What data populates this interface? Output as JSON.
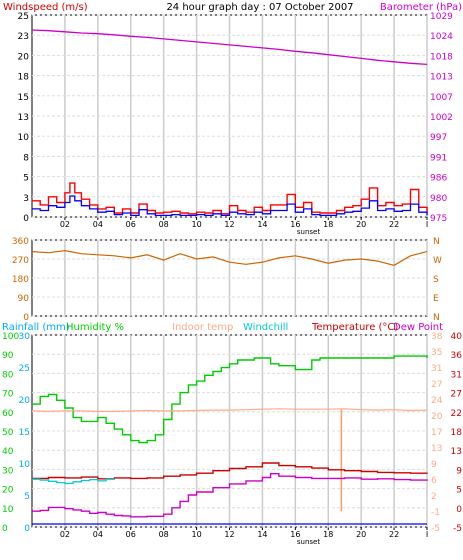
{
  "chart_data": [
    {
      "type": "line",
      "title": "24 hour graph day : 07 October 2007",
      "ylabel": "Windspeed (m/s)",
      "ylabel_right": "Barometer (hPa)",
      "x_ticks": [
        "02",
        "04",
        "06",
        "08",
        "10",
        "12",
        "14",
        "16",
        "18",
        "20",
        "22",
        "I"
      ],
      "x_annotation": "sunset",
      "y_ticks": [
        "0",
        "3",
        "5",
        "8",
        "10",
        "13",
        "15",
        "18",
        "20",
        "23",
        "25"
      ],
      "y_ticks_right": [
        "975",
        "980",
        "986",
        "991",
        "997",
        "1002",
        "1007",
        "1013",
        "1018",
        "1024",
        "1029"
      ],
      "ylim": [
        0,
        25
      ],
      "ylim_right": [
        975,
        1029
      ],
      "grid": true,
      "colors": {
        "gust": "#ff0000",
        "wind": "#0000ff",
        "barometer": "#cc00cc",
        "title_left": "#cc0000",
        "title_right": "#cc00cc",
        "ticks_right": "#cc00cc"
      },
      "series": [
        {
          "key": "barometer",
          "axis": "right",
          "x": [
            0,
            1,
            2,
            3,
            4,
            5,
            6,
            7,
            8,
            9,
            10,
            11,
            12,
            13,
            14,
            15,
            16,
            17,
            18,
            19,
            20,
            21,
            22,
            23,
            24
          ],
          "values": [
            1025,
            1024.8,
            1024.5,
            1024.2,
            1024,
            1023.7,
            1023.3,
            1023,
            1022.6,
            1022.2,
            1021.8,
            1021.4,
            1021,
            1020.6,
            1020.2,
            1019.8,
            1019.3,
            1018.9,
            1018.4,
            1017.9,
            1017.4,
            1016.9,
            1016.5,
            1016.1,
            1015.8
          ]
        },
        {
          "key": "gust",
          "axis": "left",
          "x": [
            0,
            0.5,
            1,
            1.5,
            2,
            2.3,
            2.6,
            3,
            3.5,
            4,
            4.5,
            5,
            5.5,
            6,
            6.5,
            7,
            7.5,
            8,
            8.5,
            9,
            9.5,
            10,
            10.5,
            11,
            11.5,
            12,
            12.5,
            13,
            13.5,
            14,
            14.5,
            15,
            15.5,
            16,
            16.5,
            17,
            17.5,
            18,
            18.5,
            19,
            19.5,
            20,
            20.5,
            21,
            21.5,
            22,
            22.5,
            23,
            23.5,
            24
          ],
          "values": [
            2,
            1.5,
            2.5,
            1.8,
            3,
            4.2,
            3,
            2.2,
            1.5,
            1,
            1.2,
            0.5,
            1,
            0.5,
            1.6,
            0.8,
            0.5,
            0.6,
            0.7,
            0.5,
            0.4,
            0.6,
            0.5,
            0.8,
            0.4,
            1.4,
            0.8,
            0.6,
            1.2,
            0.8,
            1.5,
            1.5,
            2.8,
            1.2,
            1.8,
            0.6,
            0.5,
            0.5,
            0.8,
            1.2,
            1.4,
            2.2,
            3.6,
            1.4,
            1.8,
            1.4,
            1.6,
            3.4,
            1.2,
            0.5
          ]
        },
        {
          "key": "wind",
          "axis": "left",
          "x": [
            0,
            0.5,
            1,
            1.5,
            2,
            2.3,
            2.6,
            3,
            3.5,
            4,
            4.5,
            5,
            5.5,
            6,
            6.5,
            7,
            7.5,
            8,
            8.5,
            9,
            9.5,
            10,
            10.5,
            11,
            11.5,
            12,
            12.5,
            13,
            13.5,
            14,
            14.5,
            15,
            15.5,
            16,
            16.5,
            17,
            17.5,
            18,
            18.5,
            19,
            19.5,
            20,
            20.5,
            21,
            21.5,
            22,
            22.5,
            23,
            23.5,
            24
          ],
          "values": [
            1,
            0.8,
            1.4,
            1.2,
            1.8,
            2.6,
            2,
            1.4,
            1,
            0.6,
            0.7,
            0.3,
            0.5,
            0.2,
            0.9,
            0.4,
            0.2,
            0.2,
            0.3,
            0.2,
            0.2,
            0.3,
            0.2,
            0.4,
            0.2,
            0.6,
            0.4,
            0.3,
            0.6,
            0.4,
            0.8,
            0.8,
            1.6,
            0.6,
            1,
            0.3,
            0.2,
            0.2,
            0.4,
            0.6,
            0.7,
            1.1,
            2,
            0.8,
            1,
            0.7,
            0.8,
            1.6,
            0.6,
            0.2
          ]
        }
      ]
    },
    {
      "type": "line",
      "y_ticks": [
        "360",
        "270",
        "180",
        "90",
        "0"
      ],
      "y_ticks_right": [
        "N",
        "W",
        "S",
        "E",
        "N"
      ],
      "ylim": [
        0,
        360
      ],
      "grid": true,
      "colors": {
        "direction": "#cc6600",
        "ticks": "#cc6600"
      },
      "series": [
        {
          "key": "direction",
          "x": [
            0,
            1,
            2,
            3,
            4,
            5,
            6,
            7,
            8,
            9,
            10,
            11,
            12,
            13,
            14,
            15,
            16,
            17,
            18,
            19,
            20,
            21,
            22,
            23,
            24
          ],
          "values": [
            305,
            300,
            310,
            295,
            290,
            285,
            275,
            290,
            265,
            295,
            270,
            280,
            255,
            245,
            255,
            275,
            285,
            270,
            250,
            265,
            270,
            260,
            240,
            285,
            305
          ]
        }
      ]
    },
    {
      "type": "line",
      "legend": [
        "Rainfall (mm)",
        "Humidity %",
        "Indoor temp",
        "Windchill",
        "Temperature (°C)",
        "Dew Point"
      ],
      "legend_colors": [
        "#00aaff",
        "#00cc00",
        "#ffaa88",
        "#00cccc",
        "#cc0000",
        "#cc00cc"
      ],
      "y_ticks_rain": [
        "0",
        "5",
        "10",
        "15",
        "20",
        "25",
        "30"
      ],
      "y_ticks_humidity": [
        "0",
        "10",
        "20",
        "30",
        "40",
        "50",
        "60",
        "70",
        "80",
        "90",
        "100"
      ],
      "y_ticks_indoor": [
        "-5",
        "-1",
        "2",
        "6",
        "9",
        "13",
        "17",
        "20",
        "24",
        "27",
        "31",
        "35",
        "38"
      ],
      "y_ticks_temp": [
        "-5",
        "0",
        "5",
        "9",
        "13",
        "18",
        "22",
        "27",
        "31",
        "36",
        "40"
      ],
      "ylim_temp": [
        -5,
        40
      ],
      "grid": true,
      "colors": {
        "humidity": "#00cc00",
        "indoor": "#ffaa88",
        "windchill": "#00cccc",
        "temperature": "#cc0000",
        "dewpoint": "#cc00cc",
        "spike": "#ff9966",
        "baseline": "#0000ff",
        "rain_ticks": "#00aaff",
        "humidity_ticks": "#00cc00",
        "indoor_ticks": "#ffaa88",
        "temp_ticks": "#cc0000"
      },
      "series": [
        {
          "key": "humidity",
          "x": [
            0,
            0.5,
            1,
            1.5,
            2,
            2.5,
            3,
            3.5,
            4,
            4.5,
            5,
            5.5,
            6,
            6.5,
            7,
            7.5,
            8,
            8.5,
            9,
            9.5,
            10,
            10.5,
            11,
            11.5,
            12,
            12.5,
            13,
            13.5,
            14,
            14.5,
            15,
            15.5,
            16,
            16.5,
            17,
            17.5,
            18,
            18.5,
            19,
            19.5,
            20,
            21,
            22,
            23,
            24
          ],
          "values": [
            64,
            68,
            69,
            66,
            62,
            57,
            55,
            55,
            57,
            54,
            51,
            48,
            45,
            44,
            45,
            48,
            56,
            64,
            70,
            74,
            76,
            79,
            81,
            83,
            85,
            87,
            87,
            88,
            88,
            85,
            84,
            84,
            82,
            82,
            87,
            88,
            88,
            88,
            88,
            88,
            88,
            88,
            89,
            89,
            88
          ]
        },
        {
          "key": "indoor",
          "x": [
            0,
            1,
            2,
            3,
            4,
            5,
            6,
            7,
            8,
            9,
            10,
            11,
            12,
            13,
            14,
            15,
            16,
            17,
            18,
            19,
            20,
            21,
            22,
            23,
            24
          ],
          "values": [
            22.2,
            22.1,
            22.2,
            22.2,
            22.1,
            22.1,
            22.2,
            22.3,
            22.2,
            22.2,
            22.3,
            22.4,
            22.4,
            22.5,
            22.6,
            22.7,
            22.6,
            22.6,
            22.6,
            22.7,
            22.5,
            22.4,
            22.5,
            22.3,
            22.4
          ]
        },
        {
          "key": "temperature",
          "x": [
            0,
            1,
            2,
            3,
            4,
            5,
            6,
            7,
            8,
            9,
            10,
            11,
            12,
            13,
            14,
            15,
            16,
            17,
            18,
            19,
            20,
            21,
            22,
            23,
            24
          ],
          "values": [
            6.4,
            6.6,
            6.5,
            6.7,
            6.3,
            6.5,
            6.4,
            6.5,
            6.9,
            7.2,
            7.6,
            8.2,
            8.7,
            9.1,
            10,
            9.4,
            9.1,
            8.8,
            8.4,
            8.2,
            8,
            7.8,
            7.7,
            7.6,
            7.5
          ]
        },
        {
          "key": "windchill",
          "x": [
            0,
            0.5,
            1,
            1.5,
            2,
            2.5,
            3,
            3.5,
            4,
            4.5,
            5
          ],
          "values": [
            6.2,
            6,
            5.7,
            5.4,
            5.2,
            5.6,
            5.9,
            6.1,
            5.8,
            6.2,
            6.4
          ]
        },
        {
          "key": "dewpoint",
          "x": [
            0,
            0.5,
            1,
            1.5,
            2,
            2.5,
            3,
            3.5,
            4,
            4.5,
            5,
            5.5,
            6,
            6.5,
            7,
            7.5,
            8,
            8.5,
            9,
            9.5,
            10,
            11,
            12,
            13,
            14,
            14.5,
            15,
            16,
            17,
            18,
            19,
            20,
            21,
            22,
            23,
            24
          ],
          "values": [
            -1.3,
            -1.1,
            -0.4,
            -0.4,
            -0.7,
            -1,
            -1.3,
            -1.8,
            -1.6,
            -2,
            -2.3,
            -2.4,
            -2.6,
            -2.6,
            -2.5,
            -2.5,
            -2,
            -0.5,
            1,
            2.5,
            3.2,
            4.2,
            5.1,
            5.8,
            6.6,
            7.5,
            6.9,
            6.6,
            6.4,
            6.4,
            6.5,
            6.2,
            6.3,
            6.1,
            6,
            5.8
          ]
        },
        {
          "key": "spike",
          "x": [
            18.8,
            18.8
          ],
          "values": [
            -1.3,
            22.7
          ]
        }
      ]
    }
  ]
}
